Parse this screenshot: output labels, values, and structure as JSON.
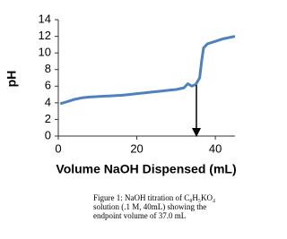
{
  "chart_data": {
    "type": "line",
    "x_label": "Volume NaOH Dispensed (mL)",
    "y_label": "pH",
    "caption": [
      "Figure 1: NaOH titration of C₈H₅KO₄",
      "solution (.1 M, 40mL) showing the",
      "endpoint volume of 37.0 mL"
    ],
    "x": [
      0.5,
      2,
      4,
      6,
      8,
      10,
      12,
      14,
      16,
      18,
      20,
      22,
      24,
      26,
      28,
      30,
      32,
      33,
      34,
      35,
      36,
      36.5,
      37,
      38,
      40,
      42,
      44,
      45
    ],
    "series": [
      {
        "color": "#4f81bd",
        "values": [
          3.9,
          4.1,
          4.4,
          4.6,
          4.7,
          4.75,
          4.8,
          4.85,
          4.9,
          5.0,
          5.1,
          5.2,
          5.3,
          5.4,
          5.5,
          5.6,
          5.8,
          6.3,
          6.0,
          6.2,
          7.0,
          9.0,
          10.6,
          11.1,
          11.4,
          11.7,
          11.9,
          12.0
        ]
      }
    ],
    "xlim": [
      0,
      45
    ],
    "xticks": [
      0,
      20,
      40
    ],
    "ylim": [
      0,
      14
    ],
    "yticks": [
      0,
      2,
      4,
      6,
      8,
      10,
      12,
      14
    ]
  }
}
